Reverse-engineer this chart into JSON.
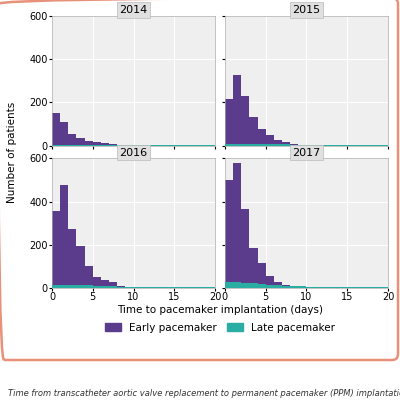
{
  "years": [
    "2014",
    "2015",
    "2016",
    "2017"
  ],
  "bin_edges": [
    0,
    1,
    2,
    3,
    4,
    5,
    6,
    7,
    8,
    9,
    10,
    11,
    12,
    13,
    14,
    15,
    16,
    17,
    18,
    19,
    20
  ],
  "early_pacemaker": {
    "2014": [
      150,
      110,
      55,
      35,
      20,
      15,
      10,
      5,
      3,
      2,
      1,
      1,
      0,
      0,
      0,
      0,
      0,
      0,
      0,
      0
    ],
    "2015": [
      215,
      325,
      230,
      130,
      75,
      50,
      25,
      15,
      5,
      4,
      2,
      2,
      1,
      1,
      0,
      0,
      0,
      0,
      0,
      0
    ],
    "2016": [
      355,
      475,
      275,
      195,
      100,
      50,
      35,
      30,
      10,
      5,
      3,
      2,
      1,
      1,
      0,
      0,
      0,
      0,
      0,
      0
    ],
    "2017": [
      500,
      580,
      365,
      185,
      115,
      55,
      30,
      15,
      8,
      5,
      3,
      2,
      1,
      1,
      0,
      0,
      0,
      0,
      0,
      0
    ]
  },
  "late_pacemaker": {
    "2014": [
      3,
      3,
      3,
      2,
      2,
      2,
      2,
      2,
      2,
      2,
      2,
      2,
      2,
      2,
      2,
      2,
      2,
      2,
      2,
      2
    ],
    "2015": [
      8,
      8,
      8,
      7,
      7,
      6,
      5,
      5,
      4,
      4,
      4,
      3,
      3,
      3,
      3,
      3,
      2,
      2,
      2,
      2
    ],
    "2016": [
      15,
      15,
      14,
      13,
      12,
      10,
      8,
      7,
      6,
      5,
      5,
      4,
      4,
      4,
      3,
      3,
      3,
      3,
      3,
      3
    ],
    "2017": [
      30,
      28,
      25,
      22,
      18,
      14,
      12,
      10,
      8,
      7,
      6,
      5,
      5,
      4,
      4,
      4,
      3,
      3,
      3,
      3
    ]
  },
  "early_color": "#5b3b8c",
  "late_color": "#2aada3",
  "xlim": [
    0,
    20
  ],
  "ylim": [
    0,
    600
  ],
  "yticks": [
    0,
    200,
    400,
    600
  ],
  "xticks": [
    0,
    5,
    10,
    15,
    20
  ],
  "xlabel": "Time to pacemaker implantation (days)",
  "ylabel": "Number of patients",
  "legend_early": "Early pacemaker",
  "legend_late": "Late pacemaker",
  "caption": "Time from transcatheter aortic valve replacement to permanent pacemaker (PPM) implantation",
  "panel_bg": "#efefef",
  "grid_color": "#ffffff",
  "outer_border_color": "#e8907a",
  "title_bg": "#e0e0e0",
  "title_fontsize": 8,
  "label_fontsize": 7.5,
  "tick_fontsize": 7,
  "legend_fontsize": 7.5,
  "caption_fontsize": 6
}
